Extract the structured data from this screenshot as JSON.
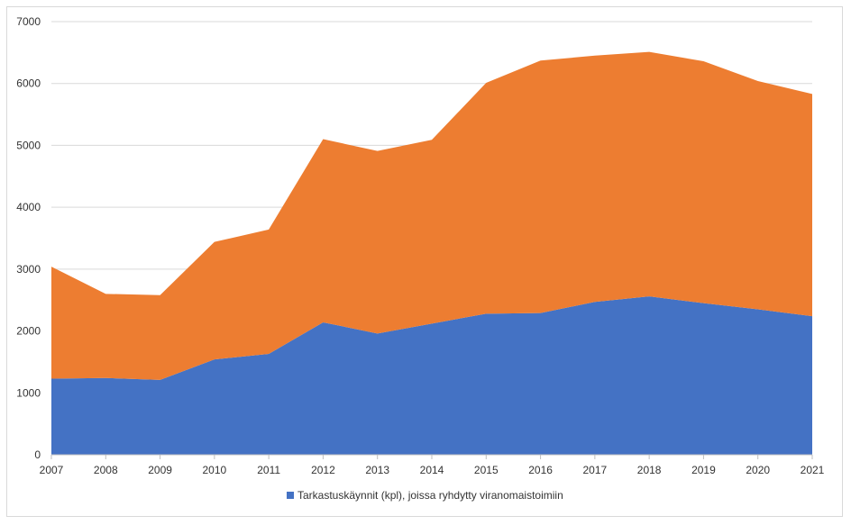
{
  "chart_data": {
    "type": "area",
    "stacked": true,
    "x": [
      "2007",
      "2008",
      "2009",
      "2010",
      "2011",
      "2012",
      "2013",
      "2014",
      "2015",
      "2016",
      "2017",
      "2018",
      "2019",
      "2020",
      "2021"
    ],
    "series": [
      {
        "name": "Tarkastuskäynnit (kpl), joissa ryhdytty viranomaistoimiin",
        "color": "#4472c4",
        "values": [
          1230,
          1240,
          1210,
          1540,
          1630,
          2140,
          1960,
          2120,
          2280,
          2290,
          2470,
          2560,
          2450,
          2350,
          2240
        ]
      },
      {
        "name": "",
        "color": "#ed7d31",
        "values": [
          1810,
          1360,
          1370,
          1900,
          2010,
          2960,
          2950,
          2970,
          3730,
          4080,
          3980,
          3950,
          3910,
          3690,
          3590
        ]
      }
    ],
    "ylim": [
      0,
      7000
    ],
    "yticks": [
      "0",
      "1000",
      "2000",
      "3000",
      "4000",
      "5000",
      "6000",
      "7000"
    ],
    "grid": true,
    "legend_position": "bottom",
    "title": "",
    "xlabel": "",
    "ylabel": ""
  }
}
